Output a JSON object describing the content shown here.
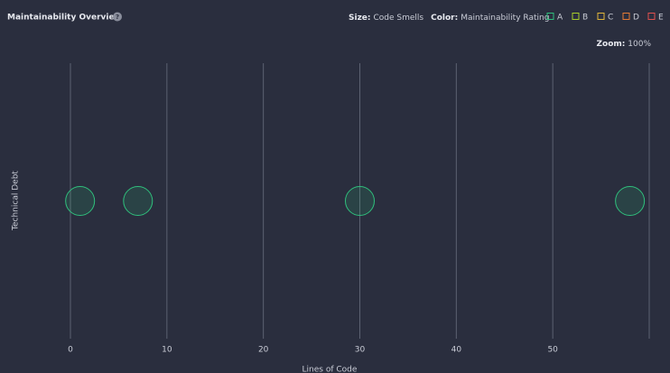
{
  "header": {
    "title": "Maintainability Overview",
    "help": "?",
    "size_label": "Size:",
    "size_value": "Code Smells",
    "color_label": "Color:",
    "color_value": "Maintainability Rating",
    "zoom_label": "Zoom:",
    "zoom_value": "100%"
  },
  "chart_data": {
    "type": "bubble",
    "x_label": "Lines of Code",
    "y_label": "Technical Debt",
    "x": [
      1,
      7,
      30,
      58
    ],
    "values": [
      0,
      0,
      0,
      0
    ],
    "sizes": [
      0,
      0,
      0,
      0
    ],
    "color": "#2fbf7c",
    "xlim": [
      0,
      60
    ],
    "xticks": [
      0,
      10,
      20,
      30,
      40,
      50
    ],
    "ylim": [
      -1,
      1
    ],
    "grid": true,
    "rating_legend": [
      {
        "name": "A",
        "color": "#2fbf7c"
      },
      {
        "name": "B",
        "color": "#a7cc2a"
      },
      {
        "name": "C",
        "color": "#e0b43a"
      },
      {
        "name": "D",
        "color": "#e47a34"
      },
      {
        "name": "E",
        "color": "#e0504e"
      }
    ]
  }
}
